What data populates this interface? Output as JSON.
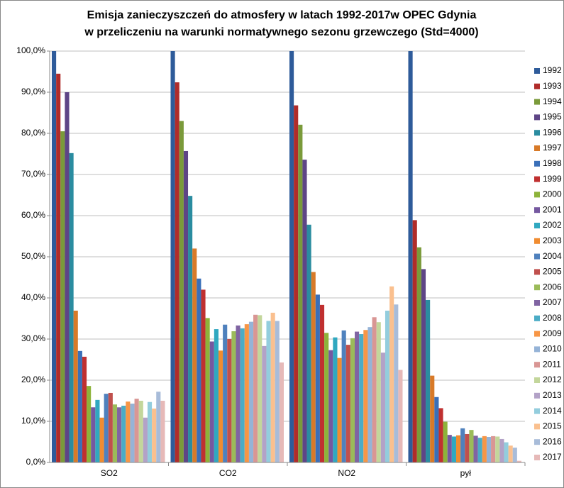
{
  "chart_data": {
    "type": "bar",
    "title": [
      "Emisja zanieczyszczeń do atmosfery w latach 1992-2017w OPEC Gdynia",
      "w przeliczeniu na warunki normatywnego sezonu grzewczego (Std=4000)"
    ],
    "categories": [
      "SO2",
      "CO2",
      "NO2",
      "pył"
    ],
    "ylim": [
      0,
      100
    ],
    "yticks": [
      {
        "value": 0,
        "label": "0,0%"
      },
      {
        "value": 10,
        "label": "10,0%"
      },
      {
        "value": 20,
        "label": "20,0%"
      },
      {
        "value": 30,
        "label": "30,0%"
      },
      {
        "value": 40,
        "label": "40,0%"
      },
      {
        "value": 50,
        "label": "50,0%"
      },
      {
        "value": 60,
        "label": "60,0%"
      },
      {
        "value": 70,
        "label": "70,0%"
      },
      {
        "value": 80,
        "label": "80,0%"
      },
      {
        "value": 90,
        "label": "90,0%"
      },
      {
        "value": 100,
        "label": "100,0%"
      }
    ],
    "grid": true,
    "legend": "right",
    "series": [
      {
        "name": "1992",
        "color": "#2E5B9A",
        "values": [
          100,
          100,
          100,
          100
        ]
      },
      {
        "name": "1993",
        "color": "#B02C2A",
        "values": [
          94.5,
          92.4,
          86.8,
          58.9
        ]
      },
      {
        "name": "1994",
        "color": "#7A9A3A",
        "values": [
          80.5,
          83,
          82.1,
          52.3
        ]
      },
      {
        "name": "1995",
        "color": "#5E4586",
        "values": [
          90,
          75.7,
          73.6,
          47
        ]
      },
      {
        "name": "1996",
        "color": "#2A8CA0",
        "values": [
          75.2,
          64.8,
          57.8,
          39.5
        ]
      },
      {
        "name": "1997",
        "color": "#D87A28",
        "values": [
          36.9,
          52,
          46.3,
          21.1
        ]
      },
      {
        "name": "1998",
        "color": "#3A6FB8",
        "values": [
          27.1,
          44.7,
          40.8,
          15.9
        ]
      },
      {
        "name": "1999",
        "color": "#C03030",
        "values": [
          25.7,
          42,
          38.3,
          13.2
        ]
      },
      {
        "name": "2000",
        "color": "#8DB33A",
        "values": [
          18.6,
          35.1,
          31.5,
          9.9
        ]
      },
      {
        "name": "2001",
        "color": "#7558A0",
        "values": [
          13.4,
          29.4,
          27.3,
          6.7
        ]
      },
      {
        "name": "2002",
        "color": "#30A8C0",
        "values": [
          15.2,
          32.4,
          30.4,
          6.3
        ]
      },
      {
        "name": "2003",
        "color": "#F08C30",
        "values": [
          10.9,
          27.2,
          25.4,
          6.6
        ]
      },
      {
        "name": "2004",
        "color": "#4F81BD",
        "values": [
          16.7,
          33.5,
          32.1,
          8.3
        ]
      },
      {
        "name": "2005",
        "color": "#C0504D",
        "values": [
          16.9,
          30,
          28.6,
          6.9
        ]
      },
      {
        "name": "2006",
        "color": "#9BBB59",
        "values": [
          14.1,
          31.9,
          30.2,
          7.9
        ]
      },
      {
        "name": "2007",
        "color": "#8064A2",
        "values": [
          13.4,
          33.3,
          31.8,
          6.5
        ]
      },
      {
        "name": "2008",
        "color": "#4BACC6",
        "values": [
          13.8,
          32.6,
          31.2,
          6.0
        ]
      },
      {
        "name": "2009",
        "color": "#F79646",
        "values": [
          14.8,
          33.6,
          32.2,
          6.4
        ]
      },
      {
        "name": "2010",
        "color": "#95B3D7",
        "values": [
          14.3,
          34.2,
          32.9,
          6.2
        ]
      },
      {
        "name": "2011",
        "color": "#D99694",
        "values": [
          15.5,
          35.9,
          35.3,
          6.4
        ]
      },
      {
        "name": "2012",
        "color": "#C3D69B",
        "values": [
          15,
          35.8,
          34.1,
          6.3
        ]
      },
      {
        "name": "2013",
        "color": "#B3A2C7",
        "values": [
          10.9,
          28.3,
          26.7,
          5.7
        ]
      },
      {
        "name": "2014",
        "color": "#93CDDD",
        "values": [
          14.7,
          34.4,
          36.9,
          4.9
        ]
      },
      {
        "name": "2015",
        "color": "#FAC08F",
        "values": [
          13.1,
          36.4,
          42.8,
          4.1
        ]
      },
      {
        "name": "2016",
        "color": "#A8BCD9",
        "values": [
          17.2,
          34.4,
          38.4,
          3.6
        ]
      },
      {
        "name": "2017",
        "color": "#E6B9B8",
        "values": [
          15,
          24.3,
          22.5,
          0.4
        ]
      }
    ]
  }
}
